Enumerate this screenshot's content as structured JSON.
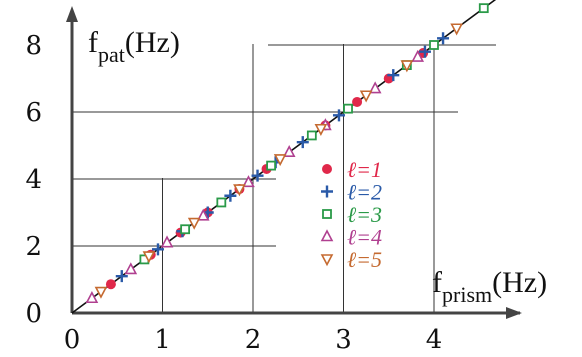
{
  "chart_data": {
    "type": "scatter",
    "title": "",
    "xlabel": {
      "main": "f",
      "sub": "prism",
      "unit": "(Hz)"
    },
    "ylabel": {
      "main": "f",
      "sub": "pat",
      "unit": "(Hz)"
    },
    "xlim": [
      0,
      4.9
    ],
    "ylim": [
      0,
      9.0
    ],
    "xticks": [
      "0",
      "1",
      "2",
      "3",
      "4"
    ],
    "yticks": [
      "0",
      "2",
      "4",
      "6",
      "8"
    ],
    "grid": true,
    "legend_position": "right-center",
    "fit_line": {
      "label": "",
      "slope": 2,
      "intercept": 0
    },
    "series": [
      {
        "name": "ℓ=1",
        "marker": "filled-circle",
        "color": "#e0284a",
        "x": [
          0.43,
          0.87,
          1.2,
          1.5,
          1.85,
          2.15,
          2.8,
          3.15,
          3.5,
          3.88
        ],
        "y": [
          0.86,
          1.74,
          2.4,
          3.0,
          3.7,
          4.3,
          5.6,
          6.3,
          7.0,
          7.76
        ]
      },
      {
        "name": "ℓ=2",
        "marker": "plus",
        "color": "#2a5aa8",
        "x": [
          0.55,
          0.95,
          1.22,
          1.5,
          1.75,
          2.05,
          2.25,
          2.55,
          2.95,
          3.55,
          3.9,
          4.1
        ],
        "y": [
          1.1,
          1.9,
          2.44,
          3.0,
          3.5,
          4.1,
          4.5,
          5.1,
          5.9,
          7.1,
          7.8,
          8.2
        ]
      },
      {
        "name": "ℓ=3",
        "marker": "open-square",
        "color": "#2a9a48",
        "x": [
          0.8,
          1.25,
          1.65,
          2.2,
          2.65,
          3.05,
          3.7,
          4.0,
          4.55
        ],
        "y": [
          1.6,
          2.5,
          3.3,
          4.4,
          5.3,
          6.1,
          7.4,
          8.0,
          9.1
        ]
      },
      {
        "name": "ℓ=4",
        "marker": "open-triangle-up",
        "color": "#b04090",
        "x": [
          0.22,
          0.65,
          1.05,
          1.45,
          1.95,
          2.4,
          2.8,
          3.35,
          3.82
        ],
        "y": [
          0.44,
          1.3,
          2.1,
          2.9,
          3.9,
          4.8,
          5.6,
          6.7,
          7.64
        ]
      },
      {
        "name": "ℓ=5",
        "marker": "open-triangle-down",
        "color": "#c56a30",
        "x": [
          0.32,
          0.85,
          1.35,
          1.85,
          2.3,
          2.75,
          3.25,
          3.7,
          4.25
        ],
        "y": [
          0.64,
          1.7,
          2.7,
          3.7,
          4.6,
          5.5,
          6.5,
          7.4,
          8.5
        ]
      }
    ]
  }
}
